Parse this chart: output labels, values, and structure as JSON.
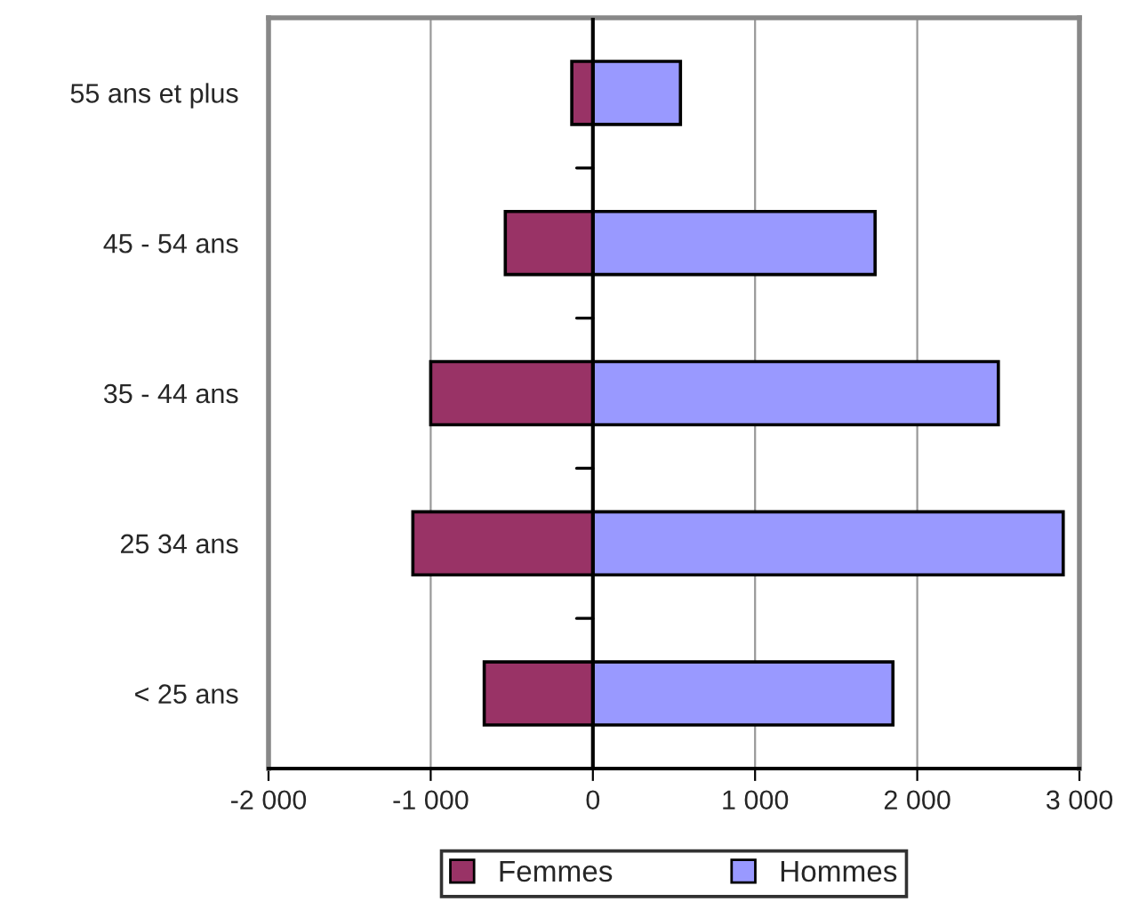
{
  "chart_data": {
    "type": "bar",
    "orientation": "horizontal",
    "stacked": true,
    "categories": [
      "55 ans et plus",
      "45 - 54 ans",
      "35 - 44 ans",
      "25 34 ans",
      "< 25 ans"
    ],
    "series": [
      {
        "name": "Femmes",
        "color": "#993366",
        "values": [
          -130,
          -540,
          -1000,
          -1110,
          -670
        ]
      },
      {
        "name": "Hommes",
        "color": "#9999ff",
        "values": [
          540,
          1740,
          2500,
          2900,
          1850
        ]
      }
    ],
    "xlim": [
      -2000,
      3000
    ],
    "xticks": [
      {
        "value": -2000,
        "label": "-2 000"
      },
      {
        "value": -1000,
        "label": "-1 000"
      },
      0,
      {
        "value": 1000,
        "label": "1 000"
      },
      {
        "value": 2000,
        "label": "2 000"
      },
      {
        "value": 3000,
        "label": "3 000"
      }
    ],
    "grid": "x",
    "legend": "bottom"
  }
}
